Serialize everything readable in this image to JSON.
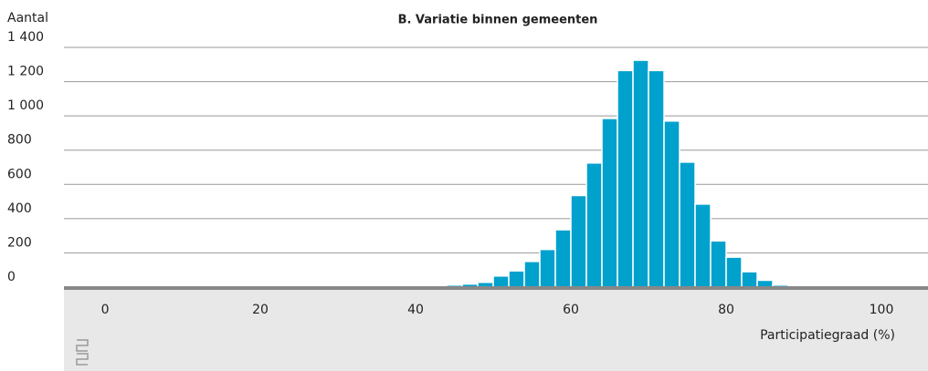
{
  "chart_data": {
    "type": "histogram",
    "title": "B.  Variatie binnen gemeenten",
    "y_label": "Aantal",
    "x_label": "Participatiegraad (%)",
    "bins": [
      42,
      44,
      46,
      48,
      50,
      52,
      54,
      56,
      58,
      60,
      62,
      64,
      66,
      68,
      70,
      72,
      74,
      76,
      78,
      80,
      82,
      84,
      86,
      88
    ],
    "values": [
      5,
      12,
      18,
      28,
      65,
      95,
      150,
      220,
      335,
      535,
      725,
      985,
      1265,
      1325,
      1265,
      970,
      730,
      485,
      270,
      175,
      90,
      40,
      12
    ],
    "color": "#00a1cd",
    "xlim": [
      -5.3,
      106
    ],
    "xticks": [
      0,
      20,
      40,
      60,
      80,
      100
    ],
    "ylim": [
      0,
      1400
    ],
    "yticks": [
      0,
      200,
      400,
      600,
      800,
      {
        "value": 1000,
        "label": "1 000"
      },
      {
        "value": 1200,
        "label": "1 200"
      },
      {
        "value": 1400,
        "label": "1 400"
      }
    ],
    "grid": true
  }
}
